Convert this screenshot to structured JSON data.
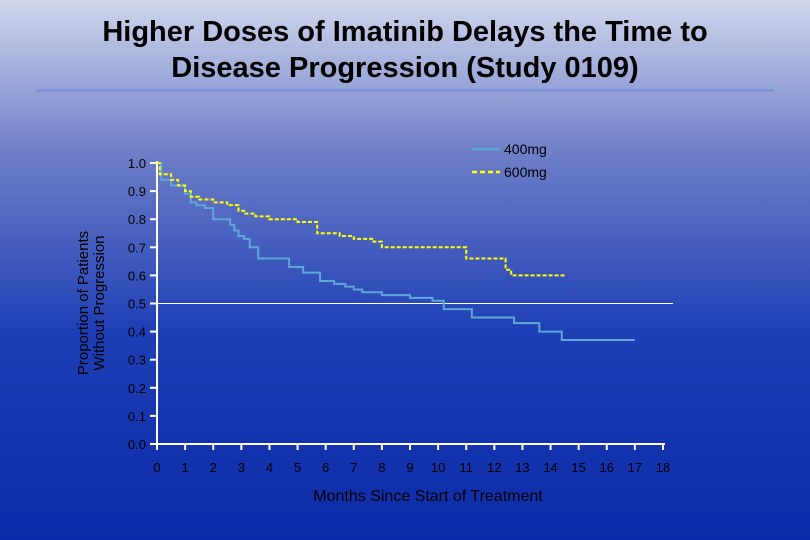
{
  "slide": {
    "title_line1": "Higher Doses of Imatinib Delays the Time to",
    "title_line2": "Disease Progression (Study 0109)"
  },
  "colors": {
    "line_400mg": "#5fa7d9",
    "line_600mg": "#ffff00",
    "median_line": "#ffffff",
    "axis": "#ffffff",
    "text": "#000000"
  },
  "chart_data": {
    "type": "line",
    "title": "Higher Doses of Imatinib Delays the Time to Disease Progression (Study 0109)",
    "xlabel": "Months Since Start of Treatment",
    "ylabel_line1": "Proportion of Patients",
    "ylabel_line2": "Without Progression",
    "xlim": [
      0,
      18
    ],
    "ylim": [
      0,
      1.0
    ],
    "x_ticks": [
      0,
      1,
      2,
      3,
      4,
      5,
      6,
      7,
      8,
      9,
      10,
      11,
      12,
      13,
      14,
      15,
      16,
      17,
      18
    ],
    "x_tick_labels": [
      "0",
      "1",
      "2",
      "3",
      "4",
      "5",
      "6",
      "7",
      "8",
      "9",
      "10",
      "11",
      "12",
      "13",
      "14",
      "15",
      "16",
      "17",
      "18"
    ],
    "y_ticks": [
      0.0,
      0.1,
      0.2,
      0.3,
      0.4,
      0.5,
      0.6,
      0.7,
      0.8,
      0.9,
      1.0
    ],
    "y_tick_labels": [
      "0.0",
      "0.1",
      "0.2",
      "0.3",
      "0.4",
      "0.5",
      "0.6",
      "0.7",
      "0.8",
      "0.9",
      "1.0"
    ],
    "reference_line_y": 0.5,
    "legend_position": "top-right",
    "series": [
      {
        "name": "400mg",
        "style": "solid",
        "x": [
          0,
          0.15,
          0.3,
          0.5,
          0.75,
          1.0,
          1.2,
          1.4,
          1.7,
          2.0,
          2.6,
          2.75,
          2.9,
          3.1,
          3.3,
          3.6,
          4.7,
          5.2,
          5.8,
          6.3,
          6.7,
          7.0,
          7.3,
          8.0,
          9.0,
          9.8,
          10.2,
          11.2,
          12.7,
          13.6,
          14.4
        ],
        "y": [
          1.0,
          0.94,
          0.94,
          0.92,
          0.92,
          0.89,
          0.86,
          0.85,
          0.84,
          0.8,
          0.78,
          0.76,
          0.74,
          0.73,
          0.7,
          0.66,
          0.63,
          0.61,
          0.58,
          0.57,
          0.56,
          0.55,
          0.54,
          0.53,
          0.52,
          0.51,
          0.48,
          0.45,
          0.43,
          0.4,
          0.37
        ],
        "x_end": 17.0
      },
      {
        "name": "600mg",
        "style": "dashed",
        "x": [
          0,
          0.1,
          0.5,
          0.75,
          1.0,
          1.2,
          1.5,
          2.0,
          2.5,
          2.9,
          3.1,
          3.5,
          4.0,
          5.0,
          5.7,
          6.5,
          7.0,
          7.7,
          8.0,
          11.0,
          12.4,
          12.6
        ],
        "y": [
          1.0,
          0.96,
          0.94,
          0.92,
          0.9,
          0.88,
          0.87,
          0.86,
          0.85,
          0.83,
          0.82,
          0.81,
          0.8,
          0.79,
          0.75,
          0.74,
          0.73,
          0.72,
          0.7,
          0.66,
          0.62,
          0.6
        ],
        "x_end": 14.5
      }
    ]
  }
}
